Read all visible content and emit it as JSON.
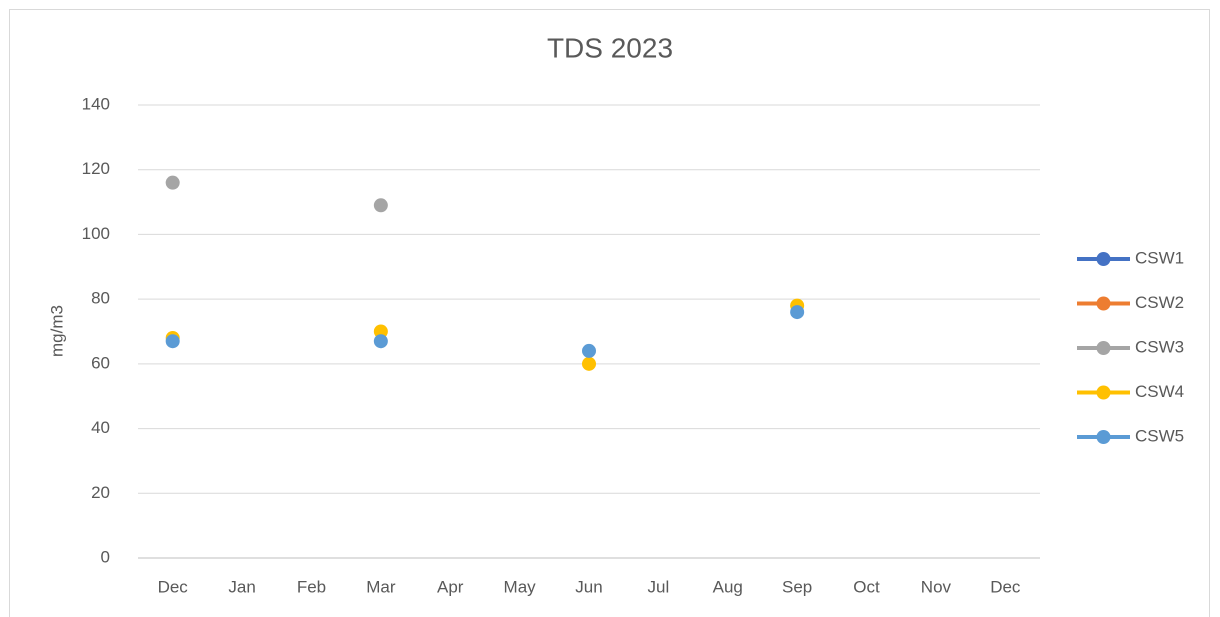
{
  "chart_data": {
    "type": "line",
    "title": "TDS 2023",
    "ylabel": "mg/m3",
    "categories": [
      "Dec",
      "Jan",
      "Feb",
      "Mar",
      "Apr",
      "May",
      "Jun",
      "Jul",
      "Aug",
      "Sep",
      "Oct",
      "Nov",
      "Dec"
    ],
    "series": [
      {
        "name": "CSW1",
        "color": "#4472c4",
        "values": [
          null,
          null,
          null,
          null,
          null,
          null,
          null,
          null,
          null,
          null,
          null,
          null,
          null
        ]
      },
      {
        "name": "CSW2",
        "color": "#ed7d31",
        "values": [
          null,
          null,
          null,
          null,
          null,
          null,
          null,
          null,
          null,
          null,
          null,
          null,
          null
        ]
      },
      {
        "name": "CSW3",
        "color": "#a5a5a5",
        "values": [
          116,
          null,
          null,
          109,
          null,
          null,
          null,
          null,
          null,
          null,
          null,
          null,
          null
        ]
      },
      {
        "name": "CSW4",
        "color": "#ffc000",
        "values": [
          68,
          null,
          null,
          70,
          null,
          null,
          60,
          null,
          null,
          78,
          null,
          null,
          null
        ]
      },
      {
        "name": "CSW5",
        "color": "#5b9bd5",
        "values": [
          67,
          null,
          null,
          67,
          null,
          null,
          64,
          null,
          null,
          76,
          null,
          null,
          null
        ]
      }
    ],
    "ylim": [
      0,
      140
    ],
    "yticks": [
      0,
      20,
      40,
      60,
      80,
      100,
      120,
      140
    ],
    "grid": true,
    "legend": "right"
  }
}
